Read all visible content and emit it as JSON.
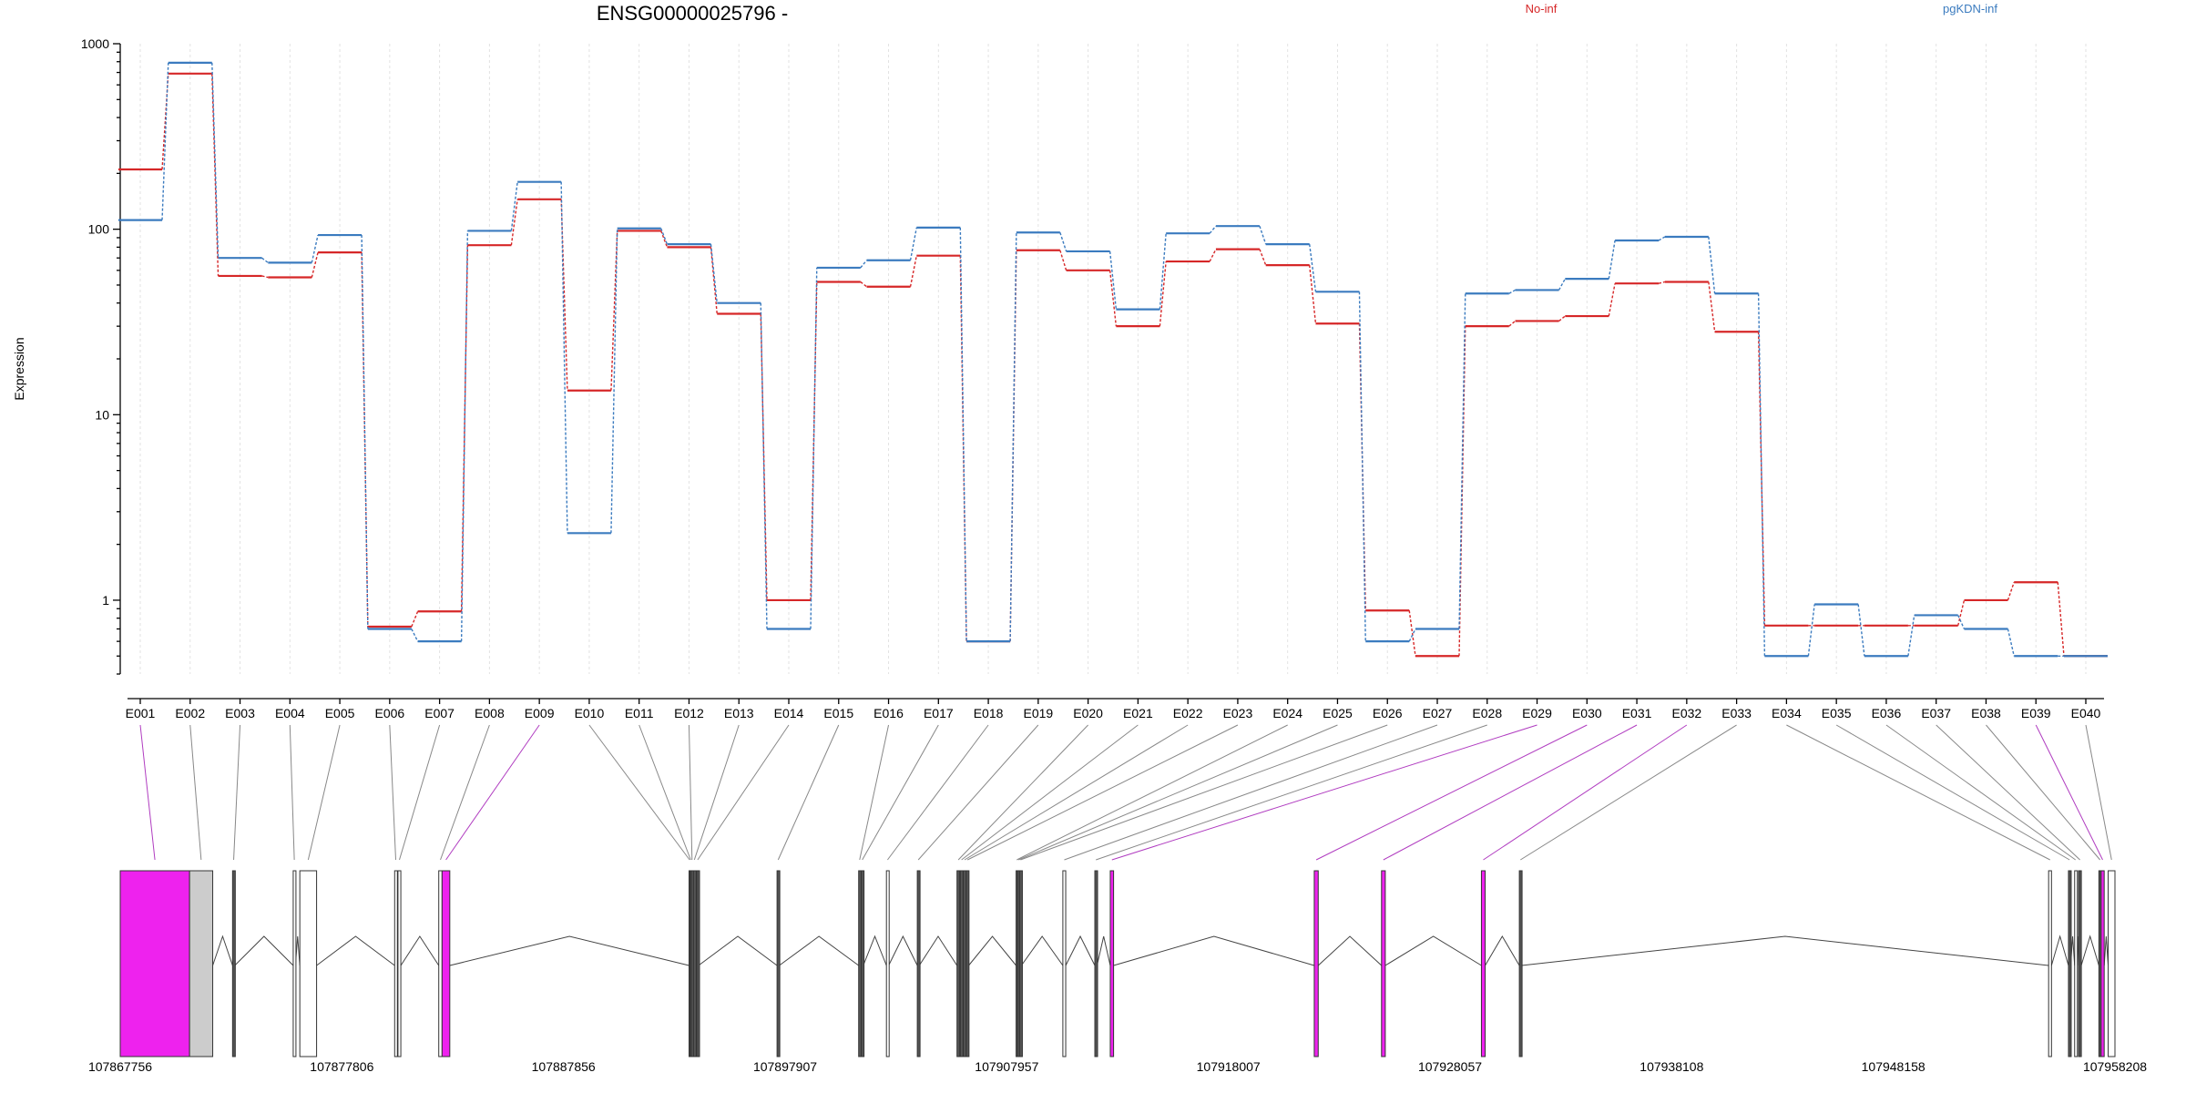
{
  "chart_data": {
    "type": "line",
    "title": "ENSG00000025796 -",
    "xlabel": "",
    "ylabel": "Expression",
    "yscale": "log",
    "ylim": [
      0.4,
      1000
    ],
    "y_ticks": [
      1,
      10,
      100,
      1000
    ],
    "y_tick_labels": [
      "1",
      "10",
      "100",
      "1000"
    ],
    "grid": "vertical dashed",
    "legend_placement": "top",
    "categories": [
      "E001",
      "E002",
      "E003",
      "E004",
      "E005",
      "E006",
      "E007",
      "E008",
      "E009",
      "E010",
      "E011",
      "E012",
      "E013",
      "E014",
      "E015",
      "E016",
      "E017",
      "E018",
      "E019",
      "E020",
      "E021",
      "E022",
      "E023",
      "E024",
      "E025",
      "E026",
      "E027",
      "E028",
      "E029",
      "E030",
      "E031",
      "E032",
      "E033",
      "E034",
      "E035",
      "E036",
      "E037",
      "E038",
      "E039",
      "E040"
    ],
    "series": [
      {
        "name": "No-inf",
        "color": "#d62728",
        "values": [
          210,
          690,
          56,
          55,
          75,
          0.72,
          0.87,
          82,
          145,
          13.5,
          98,
          80,
          35,
          1.0,
          52,
          49,
          72,
          0.6,
          77,
          60,
          30,
          67,
          78,
          64,
          31,
          0.88,
          0.5,
          30,
          32,
          34,
          51,
          52,
          28,
          0.73,
          0.73,
          0.73,
          0.73,
          1.0,
          1.25,
          0.5
        ]
      },
      {
        "name": "pgKDN-inf",
        "color": "#3b7bbf",
        "values": [
          112,
          790,
          70,
          66,
          93,
          0.7,
          0.6,
          98,
          180,
          2.3,
          101,
          83,
          40,
          0.7,
          62,
          68,
          102,
          0.6,
          96,
          76,
          37,
          95,
          104,
          83,
          46,
          0.6,
          0.7,
          45,
          47,
          54,
          87,
          91,
          45,
          0.5,
          0.95,
          0.5,
          0.83,
          0.7,
          0.5,
          0.5
        ]
      }
    ],
    "gene_model": {
      "coord_start": 107867756,
      "coord_end": 107958208,
      "coord_ticks": [
        "107867756",
        "107877806",
        "107887856",
        "107897907",
        "107907957",
        "107918007",
        "107928057",
        "107938108",
        "107948158",
        "107958208"
      ],
      "highlight_color": "#ee22ee",
      "exons": [
        {
          "id": "E001",
          "start": 107867756,
          "end": 107870900,
          "fill": "#ee22ee"
        },
        {
          "id": "E002",
          "start": 107870900,
          "end": 107871950,
          "fill": "#cccccc"
        },
        {
          "id": "E003",
          "start": 107872850,
          "end": 107872950,
          "fill": "#555555"
        },
        {
          "id": "E004",
          "start": 107875600,
          "end": 107875700,
          "fill": "#ffffff"
        },
        {
          "id": "E005",
          "start": 107875900,
          "end": 107876660,
          "fill": "#ffffff"
        },
        {
          "id": "E006",
          "start": 107880200,
          "end": 107880300,
          "fill": "#ffffff"
        },
        {
          "id": "E007",
          "start": 107880350,
          "end": 107880480,
          "fill": "#ffffff"
        },
        {
          "id": "E008",
          "start": 107882200,
          "end": 107882350,
          "fill": "#ffffff"
        },
        {
          "id": "E009",
          "start": 107882350,
          "end": 107882700,
          "fill": "#ee22ee"
        },
        {
          "id": "E010",
          "start": 107893550,
          "end": 107893600,
          "fill": "#555555"
        },
        {
          "id": "E011",
          "start": 107893600,
          "end": 107893650,
          "fill": "#555555"
        },
        {
          "id": "E012",
          "start": 107893650,
          "end": 107893720,
          "fill": "#555555"
        },
        {
          "id": "E013",
          "start": 107893750,
          "end": 107893830,
          "fill": "#555555"
        },
        {
          "id": "E014",
          "start": 107893900,
          "end": 107893980,
          "fill": "#555555"
        },
        {
          "id": "E015",
          "start": 107897540,
          "end": 107897640,
          "fill": "#555555"
        },
        {
          "id": "E016",
          "start": 107901240,
          "end": 107901330,
          "fill": "#555555"
        },
        {
          "id": "E017",
          "start": 107901360,
          "end": 107901450,
          "fill": "#555555"
        },
        {
          "id": "E018",
          "start": 107902500,
          "end": 107902600,
          "fill": "#ffffff"
        },
        {
          "id": "E019",
          "start": 107903900,
          "end": 107903990,
          "fill": "#555555"
        },
        {
          "id": "E020",
          "start": 107905700,
          "end": 107905820,
          "fill": "#555555"
        },
        {
          "id": "E021",
          "start": 107905850,
          "end": 107905960,
          "fill": "#555555"
        },
        {
          "id": "E022",
          "start": 107905990,
          "end": 107906100,
          "fill": "#555555"
        },
        {
          "id": "E023",
          "start": 107906120,
          "end": 107906230,
          "fill": "#555555"
        },
        {
          "id": "E024",
          "start": 107908380,
          "end": 107908440,
          "fill": "#555555"
        },
        {
          "id": "E025",
          "start": 107908450,
          "end": 107908530,
          "fill": "#555555"
        },
        {
          "id": "E026",
          "start": 107908540,
          "end": 107908620,
          "fill": "#555555"
        },
        {
          "id": "E027",
          "start": 107910500,
          "end": 107910630,
          "fill": "#ffffff"
        },
        {
          "id": "E028",
          "start": 107911950,
          "end": 107912050,
          "fill": "#555555"
        },
        {
          "id": "E029",
          "start": 107912650,
          "end": 107912800,
          "fill": "#ee22ee"
        },
        {
          "id": "E030",
          "start": 107921900,
          "end": 107922080,
          "fill": "#ee22ee"
        },
        {
          "id": "E031",
          "start": 107924950,
          "end": 107925120,
          "fill": "#ee22ee"
        },
        {
          "id": "E032",
          "start": 107929480,
          "end": 107929650,
          "fill": "#ee22ee"
        },
        {
          "id": "E033",
          "start": 107931200,
          "end": 107931300,
          "fill": "#555555"
        },
        {
          "id": "E034",
          "start": 107955200,
          "end": 107955330,
          "fill": "#ffffff"
        },
        {
          "id": "E035",
          "start": 107956100,
          "end": 107956200,
          "fill": "#555555"
        },
        {
          "id": "E036",
          "start": 107956380,
          "end": 107956460,
          "fill": "#ffffff"
        },
        {
          "id": "E037",
          "start": 107956560,
          "end": 107956680,
          "fill": "#555555"
        },
        {
          "id": "E038",
          "start": 107957480,
          "end": 107957580,
          "fill": "#555555"
        },
        {
          "id": "E039",
          "start": 107957580,
          "end": 107957720,
          "fill": "#ee22ee"
        },
        {
          "id": "E040",
          "start": 107957900,
          "end": 107958208,
          "fill": "#ffffff"
        }
      ]
    }
  }
}
